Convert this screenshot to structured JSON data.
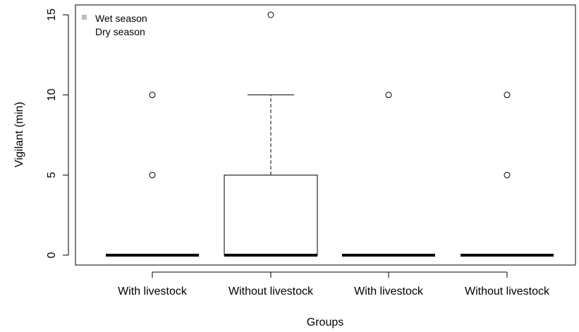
{
  "chart_data": {
    "type": "box",
    "xlabel": "Groups",
    "ylabel": "Vigilant (min)",
    "ylim": [
      0,
      15
    ],
    "yticks": [
      0,
      5,
      10,
      15
    ],
    "categories": [
      "With livestock",
      "Without livestock",
      "With livestock",
      "Without livestock"
    ],
    "legend": {
      "position": "top-left",
      "entries": [
        {
          "label": "Wet season",
          "color": "#bdbdbd"
        },
        {
          "label": "Dry season",
          "color": "#ffffff"
        }
      ]
    },
    "boxes": [
      {
        "category": "With livestock",
        "min": 0,
        "q1": 0,
        "median": 0,
        "q3": 0,
        "max": 0,
        "outliers": [
          5,
          10
        ]
      },
      {
        "category": "Without livestock",
        "min": 0,
        "q1": 0,
        "median": 0,
        "q3": 5,
        "max": 10,
        "outliers": [
          15
        ]
      },
      {
        "category": "With livestock",
        "min": 0,
        "q1": 0,
        "median": 0,
        "q3": 0,
        "max": 0,
        "outliers": [
          10
        ]
      },
      {
        "category": "Without livestock",
        "min": 0,
        "q1": 0,
        "median": 0,
        "q3": 0,
        "max": 0,
        "outliers": [
          5,
          10
        ]
      }
    ],
    "grid": false
  }
}
